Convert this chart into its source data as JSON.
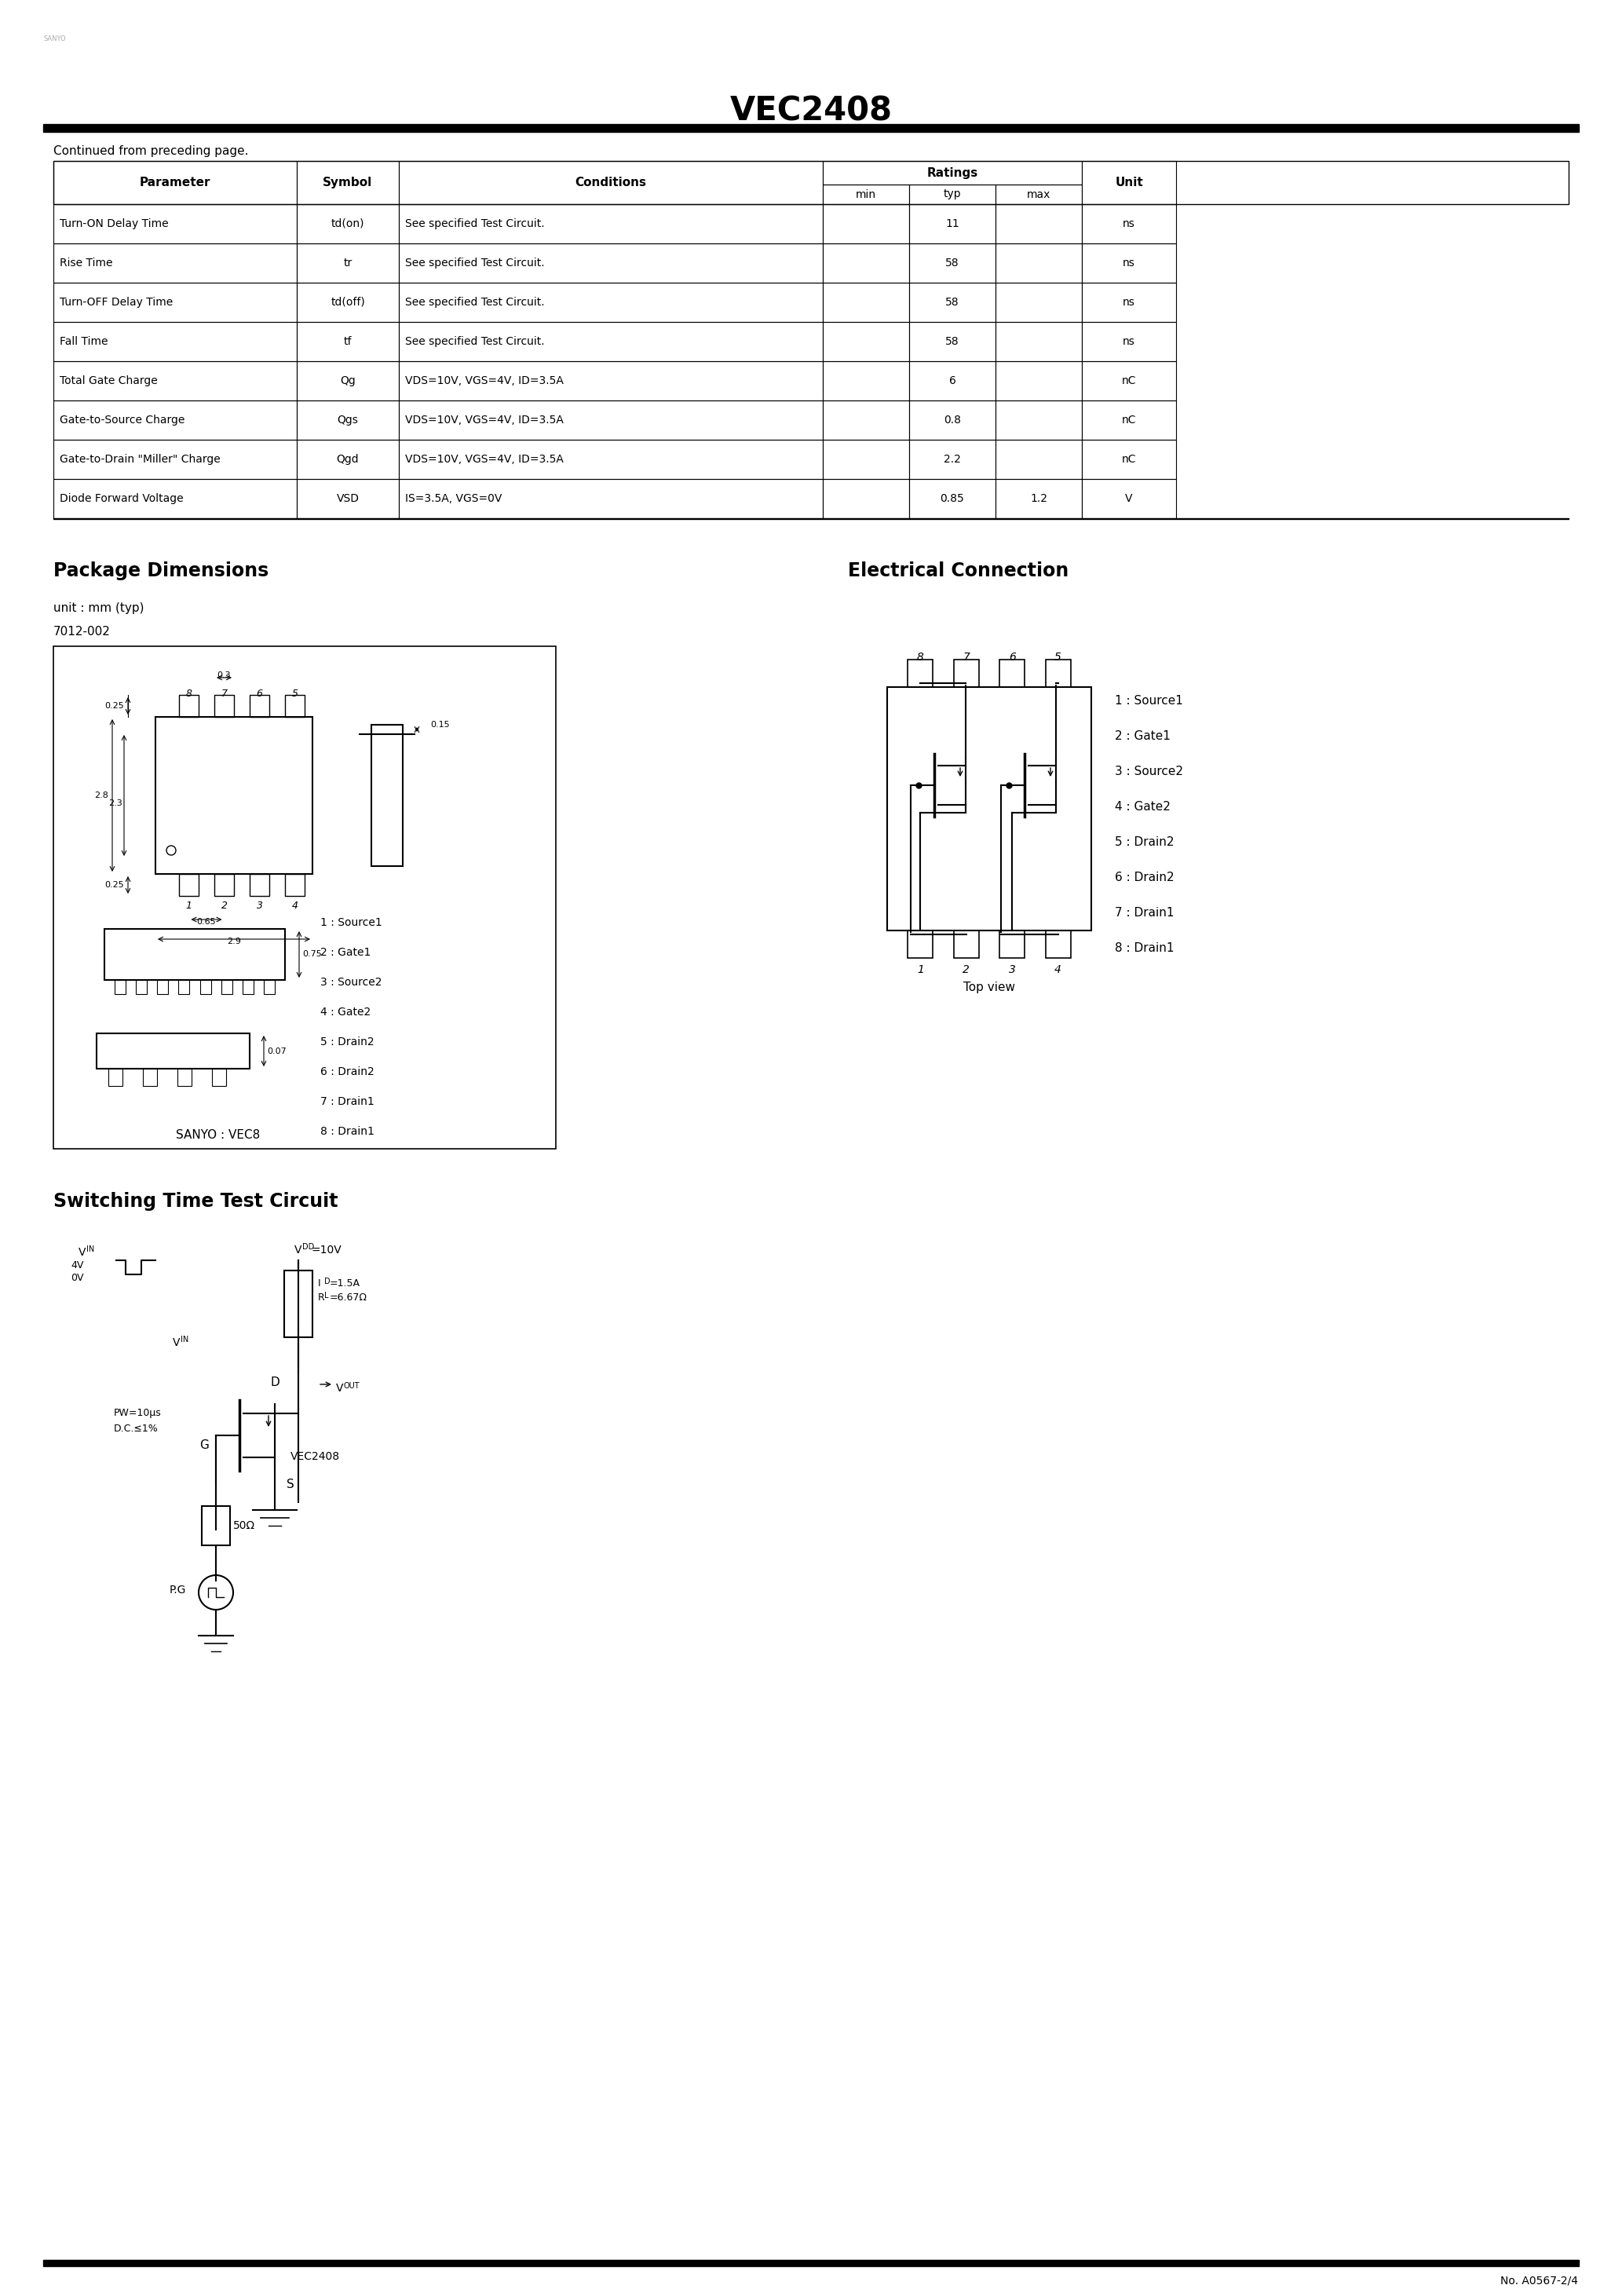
{
  "title": "VEC2408",
  "page_bg": "#ffffff",
  "text_color": "#000000",
  "continued_text": "Continued from preceding page.",
  "table_col_headers": [
    "Parameter",
    "Symbol",
    "Conditions",
    "Ratings",
    "Unit"
  ],
  "table_sub_headers": [
    "min",
    "typ",
    "max"
  ],
  "table_rows": [
    [
      "Turn-ON Delay Time",
      "td(on)",
      "See specified Test Circuit.",
      "",
      "11",
      "",
      "ns"
    ],
    [
      "Rise Time",
      "tr",
      "See specified Test Circuit.",
      "",
      "58",
      "",
      "ns"
    ],
    [
      "Turn-OFF Delay Time",
      "td(off)",
      "See specified Test Circuit.",
      "",
      "58",
      "",
      "ns"
    ],
    [
      "Fall Time",
      "tf",
      "See specified Test Circuit.",
      "",
      "58",
      "",
      "ns"
    ],
    [
      "Total Gate Charge",
      "Qg",
      "VDS=10V, VGS=4V, ID=3.5A",
      "",
      "6",
      "",
      "nC"
    ],
    [
      "Gate-to-Source Charge",
      "Qgs",
      "VDS=10V, VGS=4V, ID=3.5A",
      "",
      "0.8",
      "",
      "nC"
    ],
    [
      "Gate-to-Drain \"Miller\" Charge",
      "Qgd",
      "VDS=10V, VGS=4V, ID=3.5A",
      "",
      "2.2",
      "",
      "nC"
    ],
    [
      "Diode Forward Voltage",
      "VSD",
      "IS=3.5A, VGS=0V",
      "",
      "0.85",
      "1.2",
      "V"
    ]
  ],
  "symbol_texts": [
    "td(on)",
    "tr",
    "td(off)",
    "tf",
    "Qg",
    "Qgs",
    "Qgd",
    "VSD"
  ],
  "condition_texts": [
    "See specified Test Circuit.",
    "See specified Test Circuit.",
    "See specified Test Circuit.",
    "See specified Test Circuit.",
    "VDS=10V, VGS=4V, ID=3.5A",
    "VDS=10V, VGS=4V, ID=3.5A",
    "VDS=10V, VGS=4V, ID=3.5A",
    "IS=3.5A, VGS=0V"
  ],
  "pkg_title": "Package Dimensions",
  "elec_title": "Electrical Connection",
  "unit_text": "unit : mm (typ)",
  "part_number": "7012-002",
  "pin_labels_right": [
    "1 : Source1",
    "2 : Gate1",
    "3 : Source2",
    "4 : Gate2",
    "5 : Drain2",
    "6 : Drain2",
    "7 : Drain1",
    "8 : Drain1"
  ],
  "top_view_text": "Top view",
  "switching_title": "Switching Time Test Circuit",
  "sanyo_text": "SANYO : VEC8",
  "footer_text": "No. A0567-2/4",
  "top_margin_text": "SANYO"
}
